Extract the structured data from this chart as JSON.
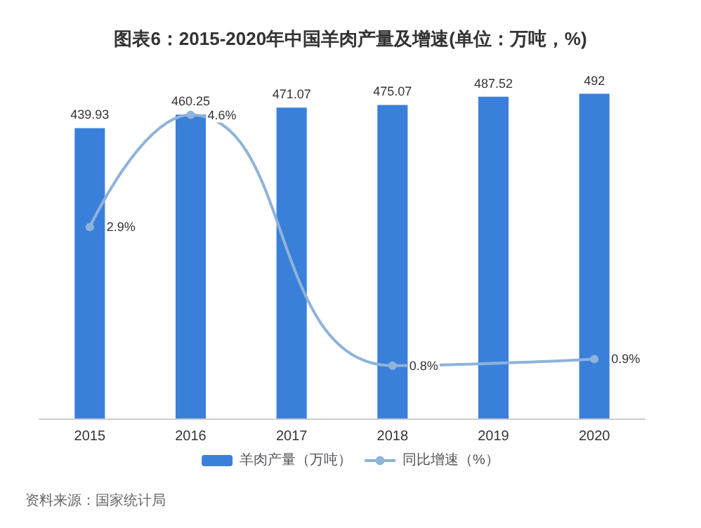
{
  "chart_data": {
    "type": "bar",
    "title": "图表6：2015-2020年中国羊肉产量及增速(单位：万吨，%)",
    "categories": [
      "2015",
      "2016",
      "2017",
      "2018",
      "2019",
      "2020"
    ],
    "series": [
      {
        "name": "羊肉产量（万吨）",
        "color": "#3a80da",
        "values": [
          439.93,
          460.25,
          471.07,
          475.07,
          487.52,
          492
        ],
        "value_labels": [
          "439.93",
          "460.25",
          "471.07",
          "475.07",
          "487.52",
          "492"
        ]
      },
      {
        "name": "同比增速（%）",
        "type": "line",
        "axis": "y2",
        "color": "#8fb3d9",
        "values": [
          2.9,
          4.6,
          null,
          0.8,
          null,
          0.9
        ],
        "value_labels": [
          "2.9%",
          "4.6%",
          null,
          "0.8%",
          null,
          "0.9%"
        ]
      }
    ],
    "marker": "circle",
    "grid": false,
    "legend": "bottom",
    "tick_labels": "x",
    "annotations": [
      "资料来源：国家统计局"
    ]
  }
}
